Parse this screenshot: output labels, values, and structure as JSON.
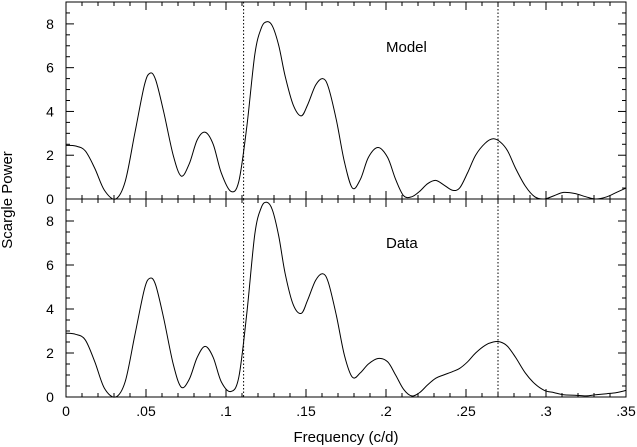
{
  "chart_data": [
    {
      "type": "line",
      "label": "Model",
      "xlabel": "Frequency (c/d)",
      "ylabel": "Scargle Power",
      "xlim": [
        0,
        0.35
      ],
      "ylim": [
        0,
        9
      ],
      "x_ticks": [
        "0",
        ".05",
        ".1",
        ".15",
        ".2",
        ".25",
        ".3",
        ".35"
      ],
      "x_tick_values": [
        0,
        0.05,
        0.1,
        0.15,
        0.2,
        0.25,
        0.3,
        0.35
      ],
      "y_ticks": [
        "0",
        "2",
        "4",
        "6",
        "8"
      ],
      "y_tick_values": [
        0,
        2,
        4,
        6,
        8
      ],
      "reference_lines": [
        0.111,
        0.27
      ],
      "x": [
        0,
        0.006,
        0.012,
        0.018,
        0.024,
        0.031,
        0.037,
        0.043,
        0.049,
        0.0525,
        0.056,
        0.061,
        0.067,
        0.072,
        0.077,
        0.082,
        0.087,
        0.092,
        0.097,
        0.103,
        0.108,
        0.113,
        0.118,
        0.122,
        0.1255,
        0.129,
        0.133,
        0.137,
        0.142,
        0.147,
        0.151,
        0.156,
        0.1605,
        0.164,
        0.169,
        0.174,
        0.179,
        0.184,
        0.189,
        0.195,
        0.201,
        0.206,
        0.211,
        0.216,
        0.221,
        0.226,
        0.231,
        0.236,
        0.2415,
        0.246,
        0.251,
        0.256,
        0.262,
        0.267,
        0.2715,
        0.276,
        0.281,
        0.287,
        0.293,
        0.299,
        0.305,
        0.311,
        0.318,
        0.325,
        0.331,
        0.338,
        0.344,
        0.35
      ],
      "y": [
        2.45,
        2.42,
        2.2,
        1.4,
        0.4,
        0.0,
        0.8,
        3.0,
        5.2,
        5.75,
        5.45,
        4.0,
        2.0,
        1.05,
        1.6,
        2.7,
        3.05,
        2.5,
        1.2,
        0.35,
        0.8,
        3.3,
        6.6,
        7.8,
        8.1,
        7.9,
        7.0,
        5.6,
        4.3,
        3.8,
        4.3,
        5.2,
        5.5,
        5.1,
        3.6,
        1.7,
        0.5,
        0.9,
        1.9,
        2.35,
        1.9,
        0.9,
        0.15,
        0.1,
        0.35,
        0.7,
        0.85,
        0.65,
        0.4,
        0.5,
        1.2,
        2.0,
        2.55,
        2.75,
        2.6,
        2.2,
        1.4,
        0.6,
        0.1,
        0.0,
        0.15,
        0.3,
        0.25,
        0.1,
        0.0,
        0.1,
        0.3,
        0.5
      ]
    },
    {
      "type": "line",
      "label": "Data",
      "xlabel": "Frequency (c/d)",
      "ylabel": "Scargle Power",
      "xlim": [
        0,
        0.35
      ],
      "ylim": [
        0,
        9
      ],
      "x_ticks": [
        "0",
        ".05",
        ".1",
        ".15",
        ".2",
        ".25",
        ".3",
        ".35"
      ],
      "x_tick_values": [
        0,
        0.05,
        0.1,
        0.15,
        0.2,
        0.25,
        0.3,
        0.35
      ],
      "y_ticks": [
        "0",
        "2",
        "4",
        "6",
        "8"
      ],
      "y_tick_values": [
        0,
        2,
        4,
        6,
        8
      ],
      "reference_lines": [
        0.111,
        0.27
      ],
      "x": [
        0,
        0.006,
        0.012,
        0.018,
        0.024,
        0.031,
        0.037,
        0.043,
        0.049,
        0.0525,
        0.056,
        0.061,
        0.067,
        0.072,
        0.077,
        0.082,
        0.087,
        0.092,
        0.097,
        0.103,
        0.108,
        0.113,
        0.118,
        0.122,
        0.1255,
        0.129,
        0.133,
        0.137,
        0.142,
        0.147,
        0.151,
        0.156,
        0.1605,
        0.164,
        0.169,
        0.174,
        0.179,
        0.184,
        0.189,
        0.195,
        0.201,
        0.206,
        0.211,
        0.216,
        0.221,
        0.226,
        0.231,
        0.236,
        0.2415,
        0.246,
        0.251,
        0.256,
        0.262,
        0.267,
        0.2715,
        0.276,
        0.281,
        0.287,
        0.293,
        0.299,
        0.305,
        0.311,
        0.318,
        0.325,
        0.331,
        0.338,
        0.344,
        0.35
      ],
      "y": [
        2.9,
        2.85,
        2.6,
        1.6,
        0.4,
        0.0,
        0.7,
        2.8,
        4.9,
        5.4,
        5.1,
        3.6,
        1.5,
        0.45,
        0.8,
        1.8,
        2.3,
        1.8,
        0.7,
        0.25,
        0.9,
        3.8,
        7.4,
        8.6,
        8.85,
        8.5,
        7.3,
        5.6,
        4.2,
        3.8,
        4.4,
        5.3,
        5.6,
        5.2,
        3.7,
        1.9,
        0.9,
        1.1,
        1.5,
        1.75,
        1.6,
        1.0,
        0.35,
        0.05,
        0.2,
        0.55,
        0.85,
        1.0,
        1.15,
        1.3,
        1.6,
        2.0,
        2.35,
        2.5,
        2.5,
        2.3,
        1.8,
        1.1,
        0.6,
        0.3,
        0.2,
        0.1,
        0.08,
        0.05,
        0.1,
        0.15,
        0.2,
        0.3
      ]
    }
  ]
}
